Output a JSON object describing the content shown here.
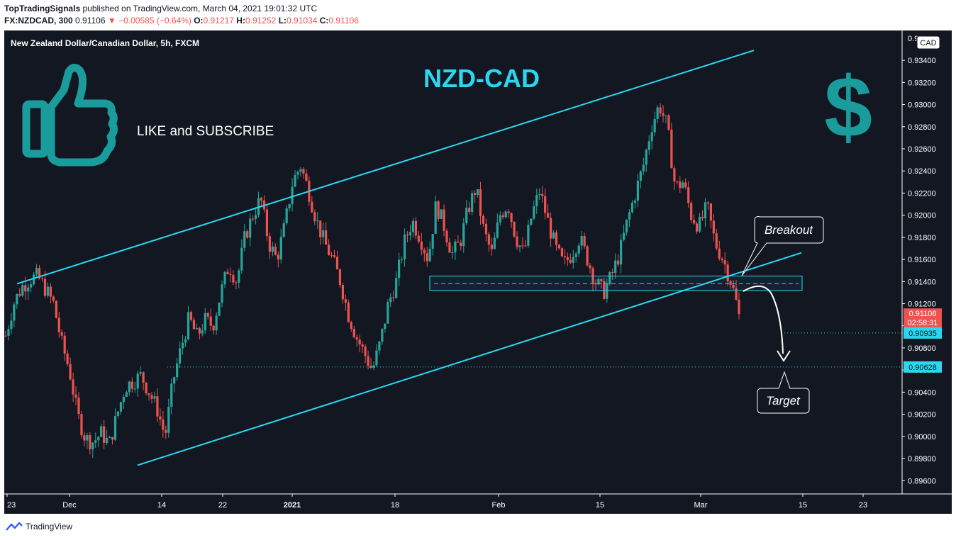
{
  "header": {
    "author": "TopTradingSignals",
    "published": "published on TradingView.com, March 04, 2021 19:01:32 UTC",
    "symbol": "FX:NZDCAD, 300",
    "last": "0.91106",
    "change_arrow": "▼",
    "change": "−0.00585 (−0.64%)",
    "o_label": "O:",
    "o": "0.91217",
    "h_label": "H:",
    "h": "0.91252",
    "l_label": "L:",
    "l": "0.91034",
    "c_label": "C:",
    "c": "0.91106"
  },
  "chart": {
    "legend": "New Zealand Dollar/Canadian Dollar, 5h, FXCM",
    "currency": "CAD",
    "title": "NZD-CAD",
    "like_text": "LIKE and SUBSCRIBE",
    "breakout_label": "Breakout",
    "target_label": "Target",
    "price_tag": "0.91106",
    "countdown": "02:58:31",
    "level1_tag": "0.90935",
    "level2_tag": "0.90628",
    "top_partial_tick": "0.93600",
    "icons": [
      "thumbs-up-icon",
      "dollar-sign-icon"
    ],
    "colors": {
      "background": "#131722",
      "up": "#26a69a",
      "down": "#ef5350",
      "line": "#29d8f0",
      "icon": "#1a9c9c"
    }
  },
  "chart_data": {
    "type": "candlestick",
    "y_ticks": [
      "0.93400",
      "0.93200",
      "0.93000",
      "0.92800",
      "0.92600",
      "0.92400",
      "0.92200",
      "0.92000",
      "0.91800",
      "0.91600",
      "0.91400",
      "0.91200",
      "0.91000",
      "0.90800",
      "0.90600",
      "0.90400",
      "0.90200",
      "0.90000",
      "0.89800",
      "0.89600"
    ],
    "x_ticks": [
      "23",
      "Dec",
      "14",
      "22",
      "2021",
      "18",
      "Feb",
      "15",
      "Mar",
      "15",
      "23"
    ],
    "x_ticks_bold": [
      "2021"
    ],
    "ylim": [
      0.8948,
      0.9367
    ],
    "close_path": [
      [
        0.9091,
        0.912,
        0.9135,
        0.9142,
        0.9145,
        0.9133,
        0.912,
        0.9085,
        0.906,
        0.902,
        0.8998,
        0.8995,
        0.9003,
        0.8993,
        0.902,
        0.9045,
        0.905,
        0.9055,
        0.904,
        0.9025,
        0.9,
        0.905,
        0.908,
        0.9107,
        0.909,
        0.9105,
        0.91,
        0.913,
        0.9155,
        0.914,
        0.918,
        0.92,
        0.9215,
        0.9175,
        0.916,
        0.919,
        0.923,
        0.9245,
        0.9222,
        0.9195,
        0.9175,
        0.916,
        0.914,
        0.911,
        0.909,
        0.9075,
        0.906,
        0.9085,
        0.912,
        0.914,
        0.9175,
        0.9195,
        0.918,
        0.916,
        0.921,
        0.919,
        0.9165,
        0.9175,
        0.9205,
        0.9225,
        0.9185,
        0.9165,
        0.92,
        0.921,
        0.918,
        0.9165,
        0.92,
        0.9222,
        0.9195,
        0.917,
        0.9155,
        0.9165,
        0.918,
        0.916,
        0.914,
        0.913,
        0.9145,
        0.9165,
        0.9195,
        0.922,
        0.9245,
        0.928,
        0.93,
        0.928,
        0.9225,
        0.923,
        0.92,
        0.919,
        0.9208,
        0.9175,
        0.916,
        0.914,
        0.9111
      ]
    ],
    "series": [
      {
        "name": "",
        "ohlc_summary": "NZDCAD 5h candles, late Nov 2020 – Mar 4 2021"
      }
    ],
    "trendlines": [
      {
        "name": "upper channel",
        "from": [
          "Nov 18",
          0.9138
        ],
        "to": [
          "Mar 10",
          0.9349
        ]
      },
      {
        "name": "lower channel",
        "from": [
          "Dec 9",
          0.8974
        ],
        "to": [
          "Mar 10",
          0.9166
        ]
      }
    ],
    "zones": [
      {
        "name": "support/resistance box",
        "y_low": 0.9132,
        "y_high": 0.9145,
        "dashed_mid": 0.9138
      }
    ],
    "horizontal_levels": [
      0.90935,
      0.90628
    ],
    "last_price": 0.91106,
    "grid": false,
    "legend_position": "top-left"
  }
}
